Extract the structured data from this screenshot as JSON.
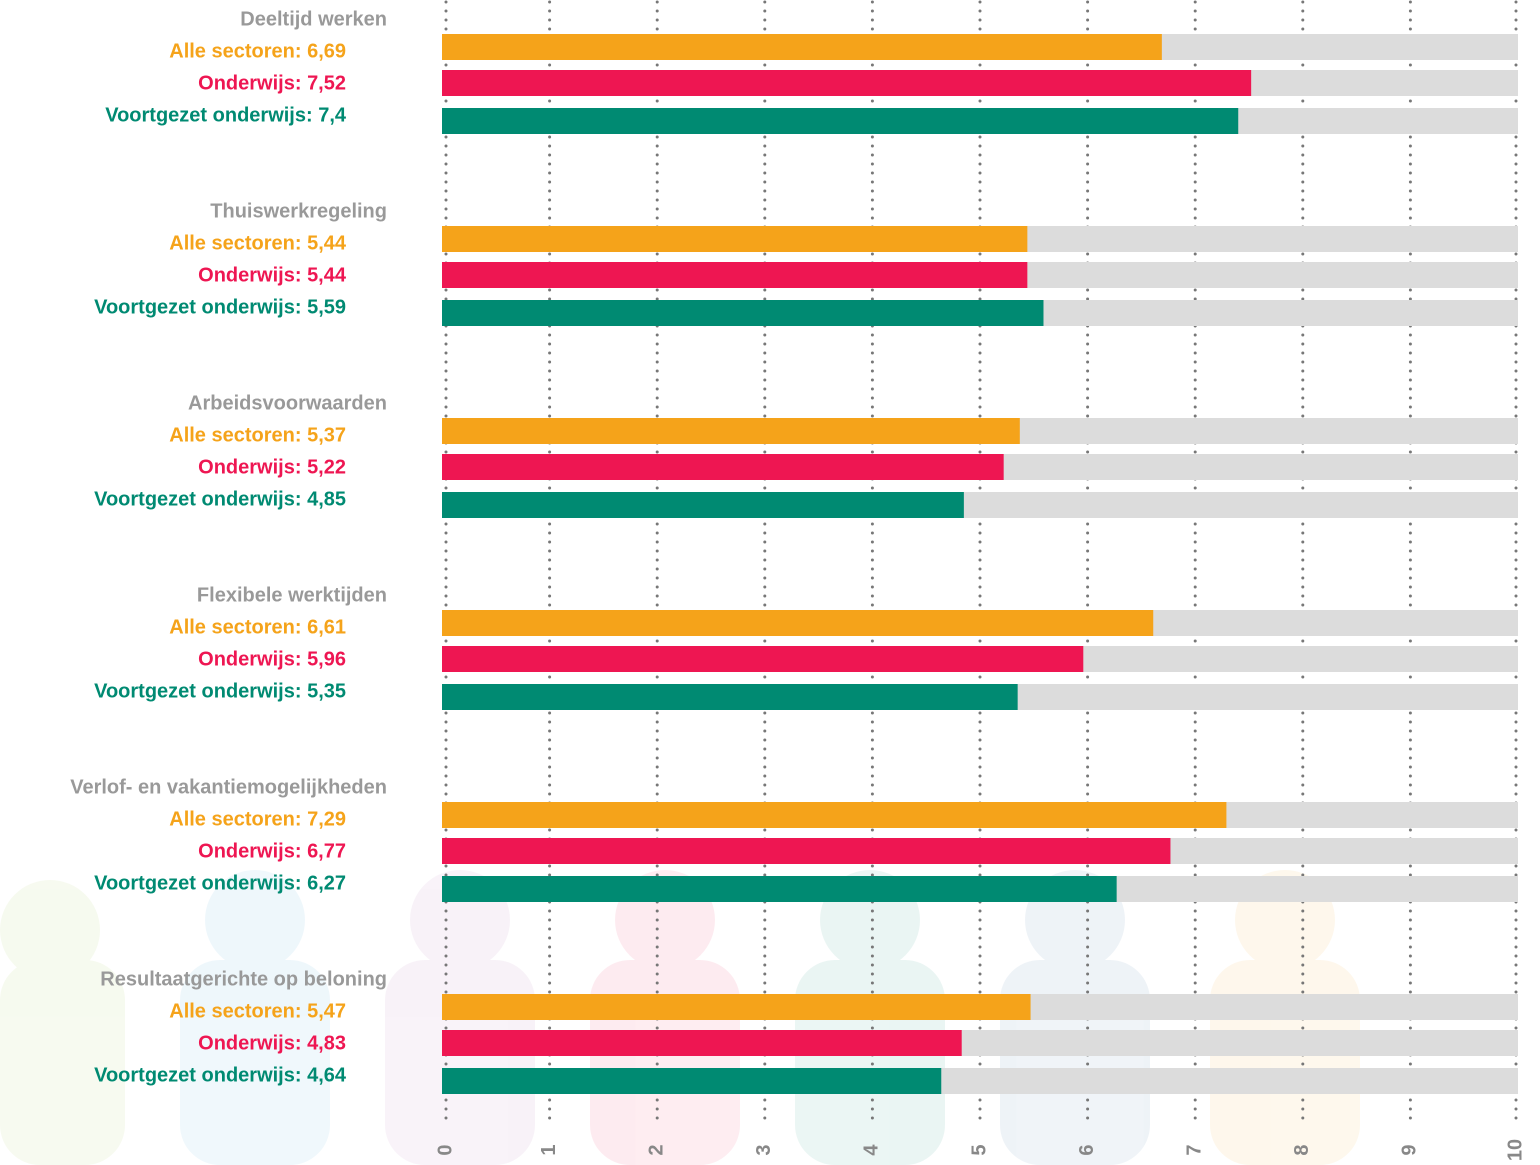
{
  "chart_data": {
    "type": "bar",
    "orientation": "horizontal",
    "categories": [
      "Deeltijd werken",
      "Thuiswerkregeling",
      "Arbeidsvoorwaarden",
      "Flexibele werktijden",
      "Verlof- en vakantiemogelijkheden",
      "Resultaatgerichte op beloning"
    ],
    "series": [
      {
        "color": "#f5a31a",
        "values": [
          6.69,
          5.44,
          5.37,
          6.61,
          7.29,
          5.47
        ],
        "value_labels": [
          "Alle sectoren: 6,69",
          "Alle sectoren: 5,44",
          "Alle sectoren: 5,37",
          "Alle sectoren: 6,61",
          "Alle sectoren: 7,29",
          "Alle sectoren: 5,47"
        ]
      },
      {
        "color": "#ee1652",
        "values": [
          7.52,
          5.44,
          5.22,
          5.96,
          6.77,
          4.83
        ],
        "value_labels": [
          "Onderwijs: 7,52",
          "Onderwijs: 5,44",
          "Onderwijs: 5,22",
          "Onderwijs: 5,96",
          "Onderwijs: 6,77",
          "Onderwijs: 4,83"
        ]
      },
      {
        "color": "#008a72",
        "values": [
          7.4,
          5.59,
          4.85,
          5.35,
          6.27,
          4.64
        ],
        "value_labels": [
          "Voortgezet onderwijs: 7,4",
          "Voortgezet onderwijs: 5,59",
          "Voortgezet onderwijs: 4,85",
          "Voortgezet onderwijs: 5,35",
          "Voortgezet onderwijs: 6,27",
          "Voortgezet onderwijs: 4,64"
        ]
      }
    ],
    "track_color": "#dcdcdc",
    "xlim": [
      0,
      10
    ],
    "xticks": [
      0,
      1,
      2,
      3,
      4,
      5,
      6,
      7,
      8,
      9,
      10
    ],
    "grid": true
  }
}
